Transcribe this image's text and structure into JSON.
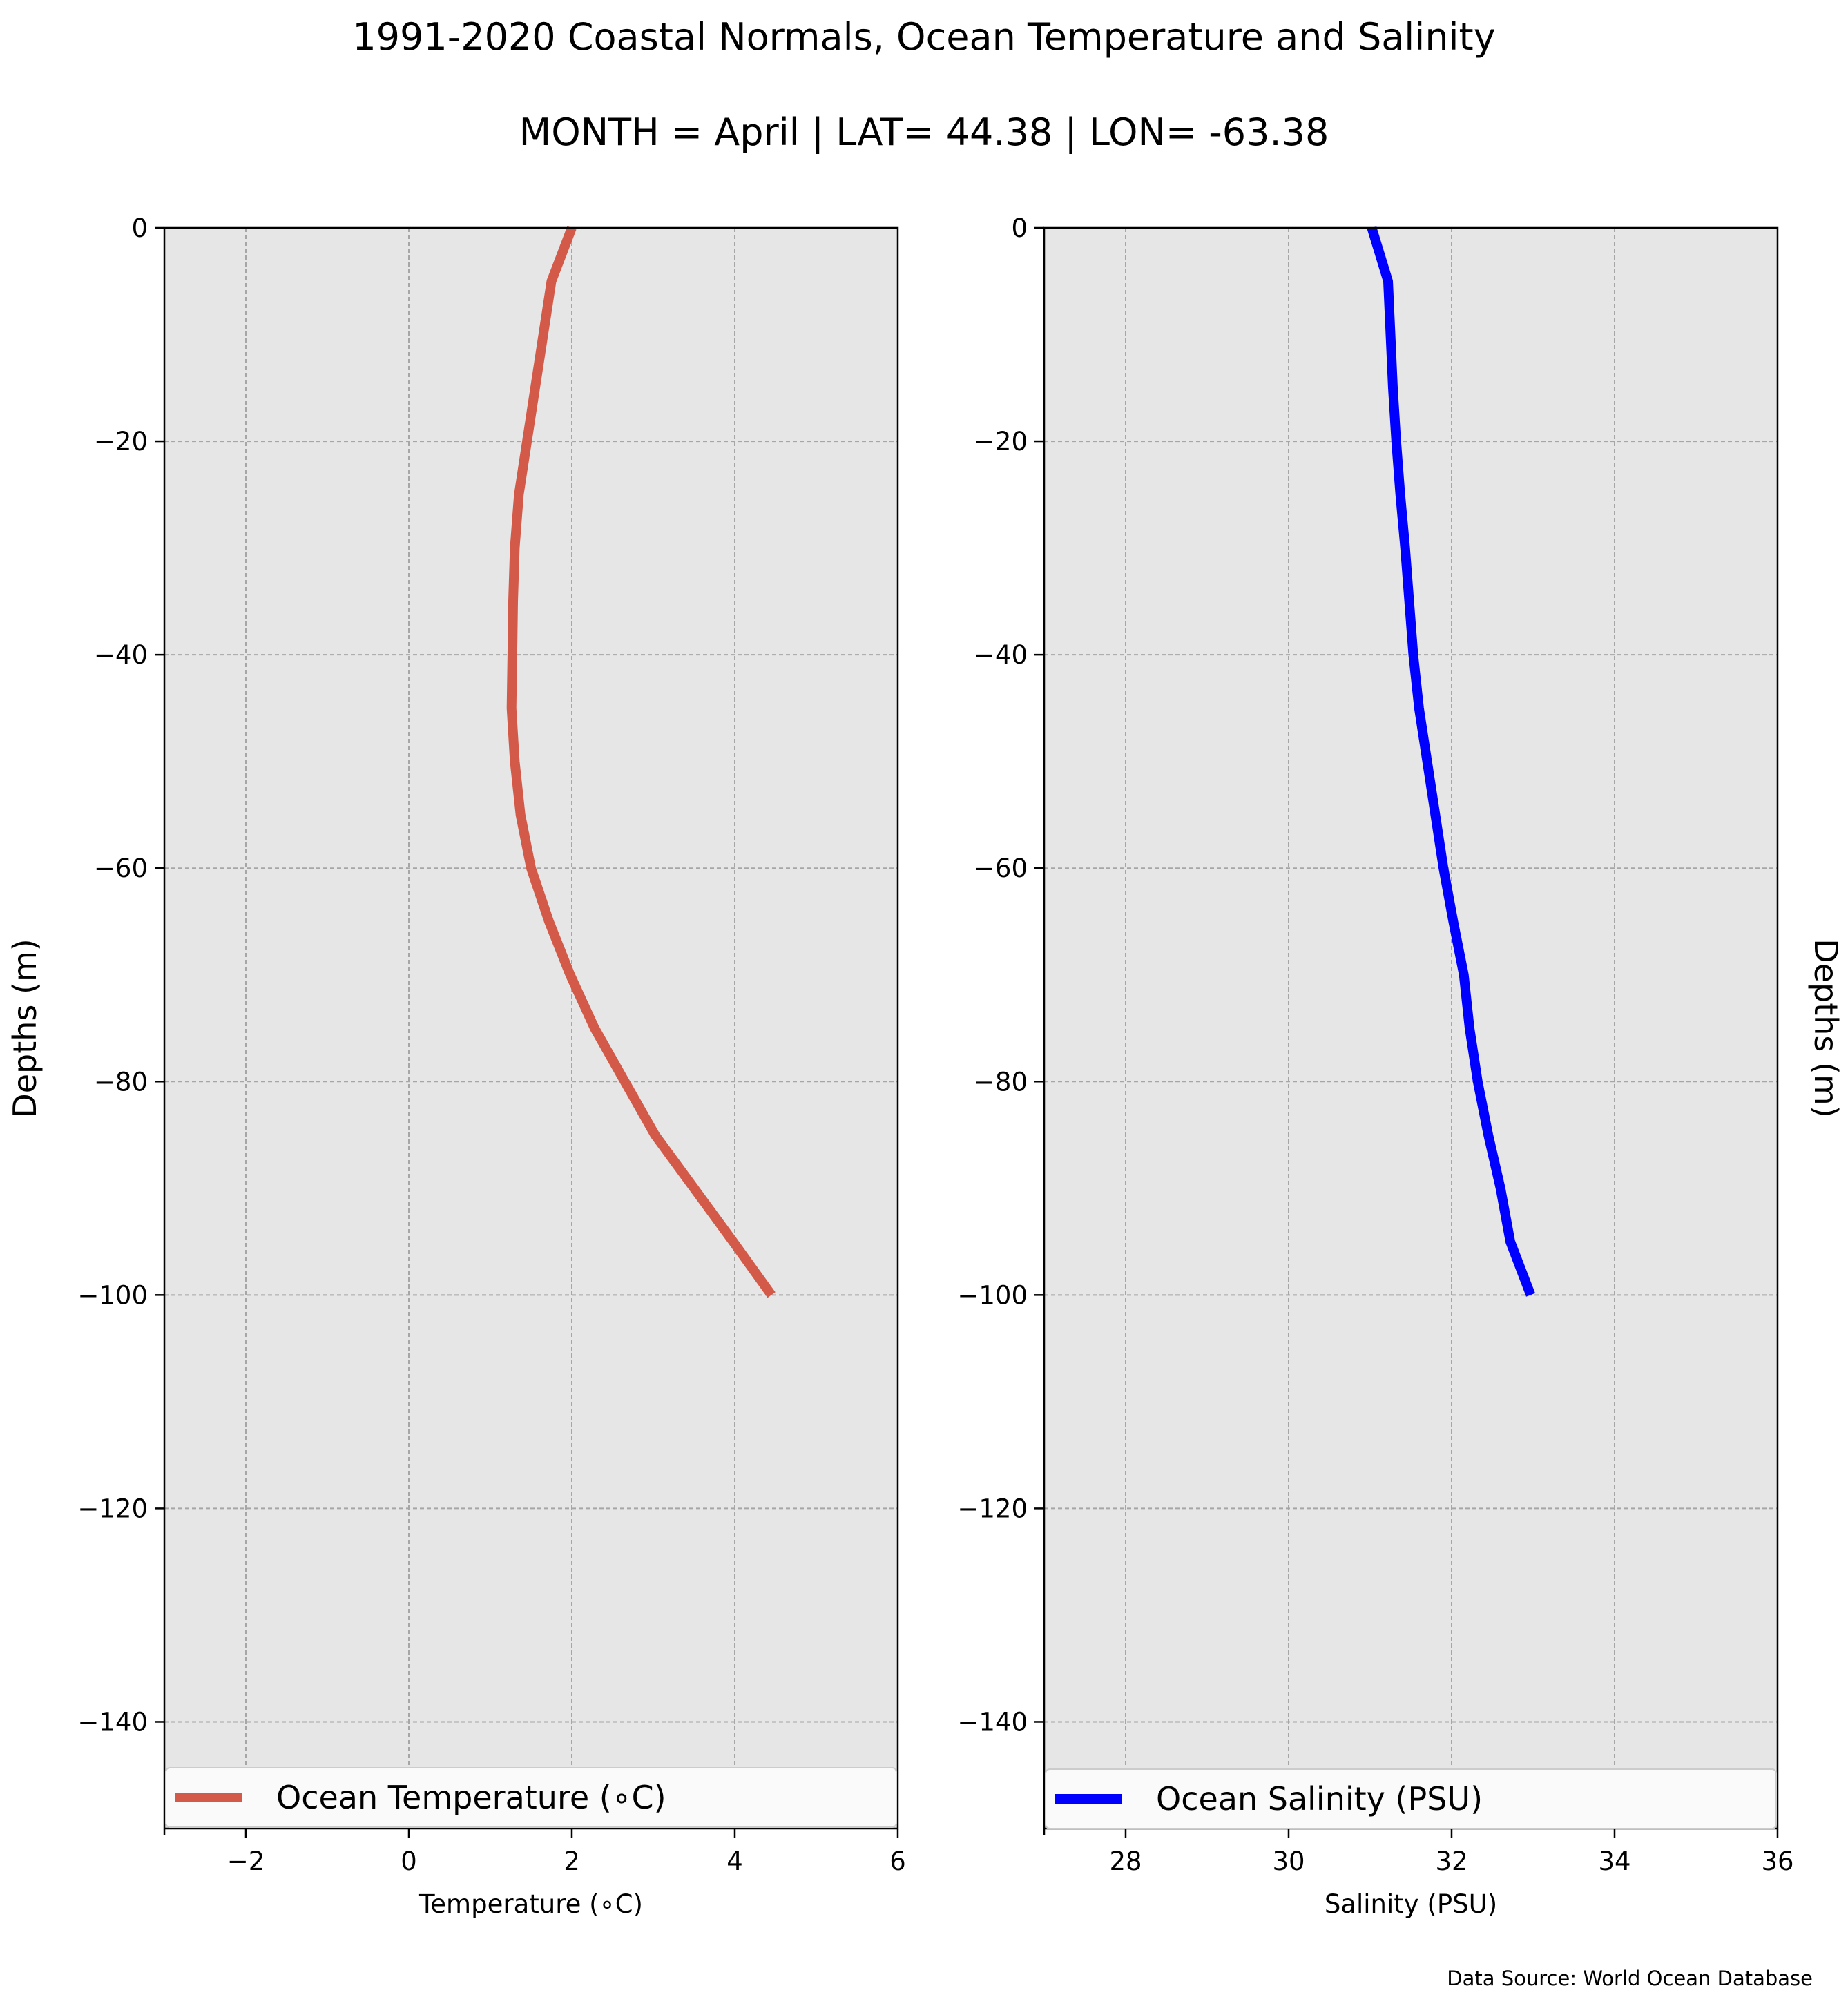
{
  "title": "1991-2020 Coastal Normals, Ocean Temperature and Salinity",
  "subtitle": "MONTH = April | LAT= 44.38 | LON= -63.38",
  "source_note": "Data Source: World Ocean Database",
  "colors": {
    "panel_bg": "#e6e6e6",
    "grid": "#a6a6a6",
    "temperature": "#d35a48",
    "salinity": "#0000ff"
  },
  "chart_data": [
    {
      "type": "line",
      "xlabel": "Temperature (∘C)",
      "ylabel": "Depths (m)",
      "xlim": [
        -3,
        6
      ],
      "ylim": [
        -150,
        0
      ],
      "xticks": [
        -2,
        0,
        2,
        4,
        6
      ],
      "xtick_labels": [
        "−2",
        "0",
        "2",
        "4",
        "6"
      ],
      "yticks": [
        0,
        -20,
        -40,
        -60,
        -80,
        -100,
        -120,
        -140
      ],
      "ytick_labels": [
        "0",
        "−20",
        "−40",
        "−60",
        "−80",
        "−100",
        "−120",
        "−140"
      ],
      "grid": true,
      "legend_position": "bottom",
      "series": [
        {
          "name": "Ocean Temperature (∘C)",
          "color": "#d35a48",
          "x": [
            2.0,
            1.75,
            1.65,
            1.55,
            1.45,
            1.35,
            1.3,
            1.28,
            1.27,
            1.26,
            1.3,
            1.37,
            1.5,
            1.72,
            1.98,
            2.28,
            2.65,
            3.02,
            3.5,
            3.98,
            4.45
          ],
          "y": [
            0,
            -5,
            -10,
            -15,
            -20,
            -25,
            -30,
            -35,
            -40,
            -45,
            -50,
            -55,
            -60,
            -65,
            -70,
            -75,
            -80,
            -85,
            -90,
            -95,
            -100
          ]
        }
      ]
    },
    {
      "type": "line",
      "xlabel": "Salinity (PSU)",
      "ylabel": "Depths (m)",
      "ylabel_side": "right",
      "xlim": [
        27,
        36
      ],
      "ylim": [
        -150,
        0
      ],
      "xticks": [
        28,
        30,
        32,
        34,
        36
      ],
      "xtick_labels": [
        "28",
        "30",
        "32",
        "34",
        "36"
      ],
      "yticks": [
        0,
        -20,
        -40,
        -60,
        -80,
        -100,
        -120,
        -140
      ],
      "ytick_labels": [
        "0",
        "−20",
        "−40",
        "−60",
        "−80",
        "−100",
        "−120",
        "−140"
      ],
      "grid": true,
      "legend_position": "bottom",
      "series": [
        {
          "name": "Ocean Salinity (PSU)",
          "color": "#0000ff",
          "x": [
            31.02,
            31.22,
            31.25,
            31.28,
            31.32,
            31.37,
            31.43,
            31.48,
            31.53,
            31.6,
            31.7,
            31.8,
            31.9,
            32.02,
            32.15,
            32.22,
            32.32,
            32.45,
            32.6,
            32.72,
            32.97
          ],
          "y": [
            0,
            -5,
            -10,
            -15,
            -20,
            -25,
            -30,
            -35,
            -40,
            -45,
            -50,
            -55,
            -60,
            -65,
            -70,
            -75,
            -80,
            -85,
            -90,
            -95,
            -100
          ]
        }
      ]
    }
  ]
}
